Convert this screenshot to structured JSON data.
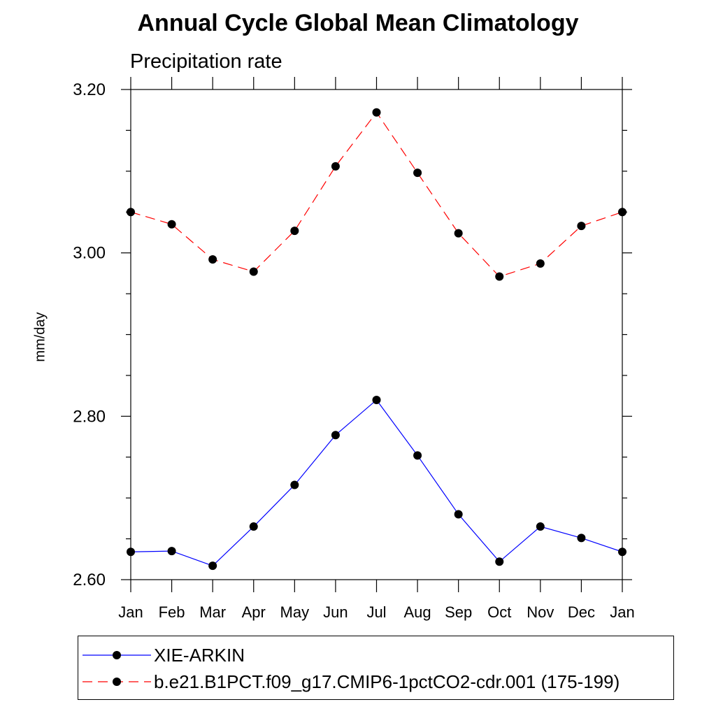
{
  "chart_data": {
    "type": "line",
    "title": "Annual Cycle Global Mean Climatology",
    "subtitle": "Precipitation rate",
    "xlabel": "",
    "ylabel": "mm/day",
    "categories": [
      "Jan",
      "Feb",
      "Mar",
      "Apr",
      "May",
      "Jun",
      "Jul",
      "Aug",
      "Sep",
      "Oct",
      "Nov",
      "Dec",
      "Jan"
    ],
    "ylim": [
      2.6,
      3.2
    ],
    "yticks": [
      "2.60",
      "2.80",
      "3.00",
      "3.20"
    ],
    "series": [
      {
        "name": "XIE-ARKIN",
        "color": "#0000ff",
        "style": "solid",
        "values": [
          2.634,
          2.635,
          2.617,
          2.665,
          2.716,
          2.777,
          2.82,
          2.752,
          2.68,
          2.622,
          2.665,
          2.651,
          2.634
        ]
      },
      {
        "name": "b.e21.B1PCT.f09_g17.CMIP6-1pctCO2-cdr.001 (175-199)",
        "color": "#ff0000",
        "style": "dashed",
        "values": [
          3.05,
          3.035,
          2.992,
          2.977,
          3.027,
          3.106,
          3.172,
          3.098,
          3.024,
          2.971,
          2.987,
          3.033,
          3.05
        ]
      }
    ],
    "legend_position": "bottom",
    "grid": false
  }
}
